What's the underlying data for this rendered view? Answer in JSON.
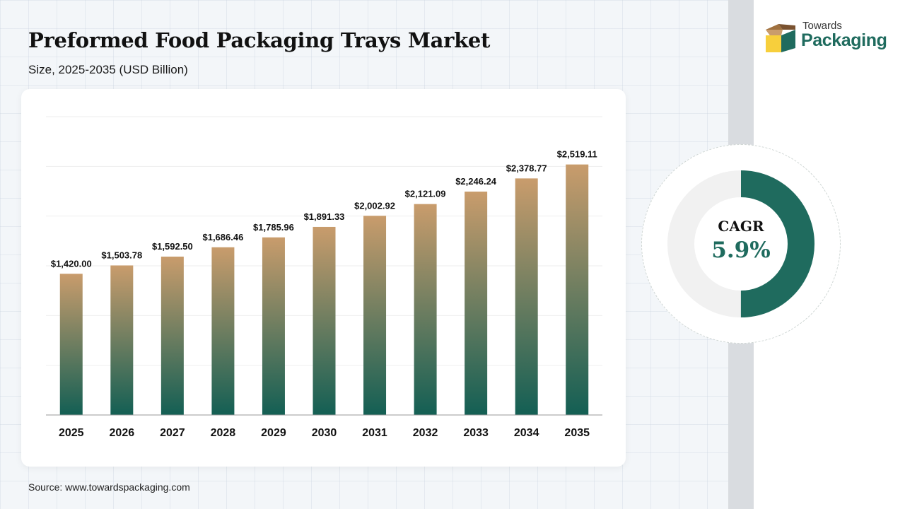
{
  "header": {
    "title": "Preformed Food Packaging Trays Market",
    "subtitle": "Size, 2025-2035 (USD Billion)"
  },
  "logo": {
    "line1": "Towards",
    "line2": "Packaging",
    "icon": "box-icon"
  },
  "cagr": {
    "label": "CAGR",
    "value": "5.9%",
    "fraction": 0.5,
    "color": "#1f6b5e",
    "track_color": "#f1f1f1"
  },
  "source": "Source: www.towardspackaging.com",
  "colors": {
    "bar_top": "#c99c6c",
    "bar_bottom": "#135f54",
    "accent": "#1f6b5e"
  },
  "chart_data": {
    "type": "bar",
    "categories": [
      "2025",
      "2026",
      "2027",
      "2028",
      "2029",
      "2030",
      "2031",
      "2032",
      "2033",
      "2034",
      "2035"
    ],
    "values": [
      1420.0,
      1503.78,
      1592.5,
      1686.46,
      1785.96,
      1891.33,
      2002.92,
      2121.09,
      2246.24,
      2378.77,
      2519.11
    ],
    "data_labels": [
      "$1,420.00",
      "$1,503.78",
      "$1,592.50",
      "$1,686.46",
      "$1,785.96",
      "$1,891.33",
      "$2,002.92",
      "$2,121.09",
      "$2,246.24",
      "$2,378.77",
      "$2,519.11"
    ],
    "title": "Preformed Food Packaging Trays Market",
    "subtitle": "Size, 2025-2035 (USD Billion)",
    "xlabel": "",
    "ylabel": "",
    "ylim": [
      0,
      3000
    ],
    "grid": true,
    "legend": "none"
  }
}
